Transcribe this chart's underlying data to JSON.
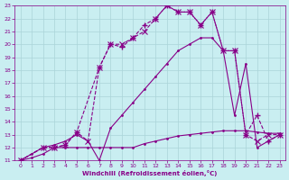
{
  "xlabel": "Windchill (Refroidissement éolien,°C)",
  "xlim": [
    -0.5,
    23.5
  ],
  "ylim": [
    11,
    23
  ],
  "xticks": [
    0,
    1,
    2,
    3,
    4,
    5,
    6,
    7,
    8,
    9,
    10,
    11,
    12,
    13,
    14,
    15,
    16,
    17,
    18,
    19,
    20,
    21,
    22,
    23
  ],
  "yticks": [
    11,
    12,
    13,
    14,
    15,
    16,
    17,
    18,
    19,
    20,
    21,
    22,
    23
  ],
  "bg_color": "#c9eef1",
  "grid_color": "#aad4d8",
  "line_color": "#880088",
  "line1_x": [
    0,
    1,
    2,
    3,
    4,
    5,
    6,
    7,
    8,
    9,
    10,
    11,
    12,
    13,
    14,
    15,
    16,
    17,
    18,
    19,
    20,
    21,
    22,
    23
  ],
  "line1_y": [
    11,
    11.2,
    11.5,
    12,
    12,
    12,
    12,
    12,
    12,
    12,
    12,
    12.3,
    12.5,
    12.7,
    12.9,
    13.0,
    13.1,
    13.2,
    13.3,
    13.3,
    13.3,
    13.2,
    13.1,
    13.1
  ],
  "line2_x": [
    0,
    1,
    2,
    3,
    4,
    5,
    6,
    7,
    8,
    9,
    10,
    11,
    12,
    13,
    14,
    15,
    16,
    17,
    18,
    19,
    20,
    21,
    22,
    23
  ],
  "line2_y": [
    11,
    11.5,
    12,
    12.2,
    12.5,
    13,
    12.5,
    11.0,
    13.5,
    14.5,
    15.5,
    16.5,
    17.5,
    18.5,
    19.5,
    20.0,
    20.5,
    20.5,
    19.5,
    14.5,
    18.5,
    12.0,
    12.5,
    13.0
  ],
  "line3_x": [
    0,
    2,
    3,
    4,
    5,
    7,
    8,
    9,
    10,
    11,
    12,
    13,
    14,
    15,
    16,
    17,
    18,
    19,
    20,
    21,
    22,
    23
  ],
  "line3_y": [
    11,
    12,
    12,
    12.2,
    13.2,
    18.2,
    20.0,
    19.8,
    20.5,
    21.5,
    22.0,
    23.0,
    22.5,
    22.5,
    21.5,
    22.5,
    19.5,
    19.5,
    13.0,
    14.5,
    12.5,
    13.0
  ],
  "line4_x": [
    0,
    2,
    3,
    4,
    5,
    6,
    7,
    8,
    9,
    10,
    11,
    12,
    13,
    14,
    15,
    16,
    17,
    18,
    19,
    20,
    21,
    22,
    23
  ],
  "line4_y": [
    11,
    12,
    12,
    12.2,
    13.2,
    12.5,
    18.2,
    20.0,
    20.0,
    20.5,
    21.0,
    22.0,
    23.0,
    22.5,
    22.5,
    21.5,
    22.5,
    19.5,
    19.5,
    13.0,
    12.5,
    13.0,
    13.0
  ]
}
